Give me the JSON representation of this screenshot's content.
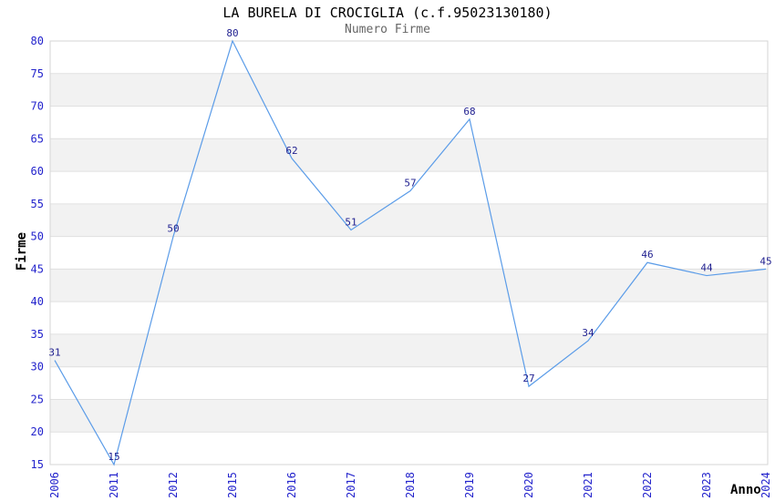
{
  "chart_data": {
    "type": "line",
    "title": "LA BURELA DI CROCIGLIA (c.f.95023130180)",
    "subtitle": "Numero Firme",
    "xlabel": "Anno",
    "ylabel": "Firme",
    "categories": [
      "2006",
      "2011",
      "2012",
      "2015",
      "2016",
      "2017",
      "2018",
      "2019",
      "2020",
      "2021",
      "2022",
      "2023",
      "2024"
    ],
    "series": [
      {
        "name": "Numero Firme",
        "values": [
          31,
          15,
          50,
          80,
          62,
          51,
          57,
          68,
          27,
          34,
          46,
          44,
          45
        ]
      }
    ],
    "point_labels": [
      "31",
      "15",
      "50",
      "80",
      "62",
      "51",
      "57",
      "68",
      "27",
      "34",
      "46",
      "44",
      "45"
    ],
    "ylim": [
      15,
      80
    ],
    "ytick_step": 5,
    "yticks": [
      15,
      20,
      25,
      30,
      35,
      40,
      45,
      50,
      55,
      60,
      65,
      70,
      75,
      80
    ],
    "grid": "horizontal-stripes",
    "legend_position": "none",
    "colors": {
      "line": "#5b9ce8",
      "tick_label": "#2323cc",
      "data_label": "#1f1f8f",
      "gridline": "#e0e0e0",
      "stripe": "#f2f2f2",
      "plot_border": "#d6d6d6",
      "title": "#000000",
      "subtitle": "#666666",
      "axis_title": "#000000",
      "background": "#ffffff"
    }
  }
}
